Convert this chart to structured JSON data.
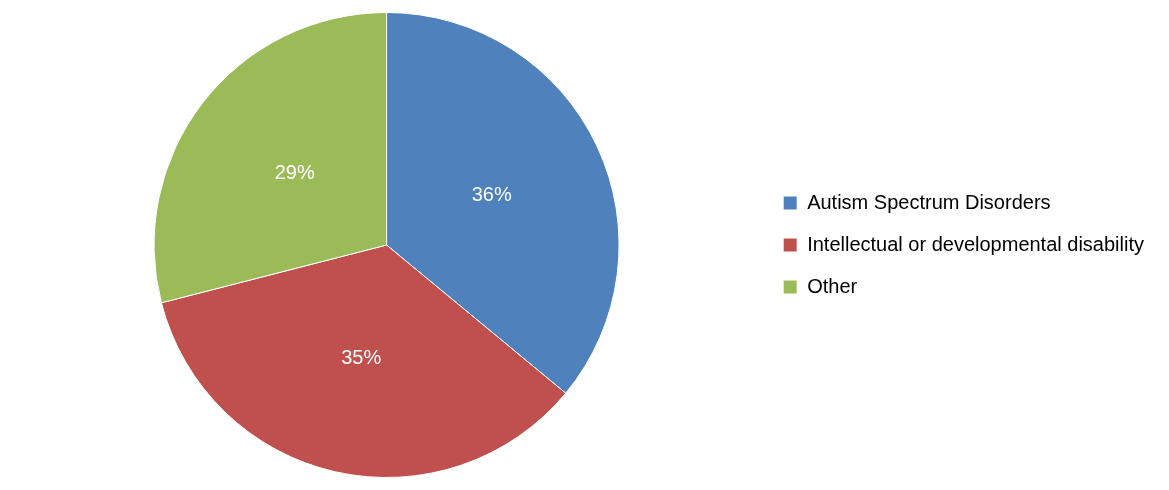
{
  "chart_data": {
    "type": "pie",
    "categories": [
      "Autism Spectrum Disorders",
      "Intellectual or developmental disability",
      "Other"
    ],
    "values": [
      36,
      35,
      29
    ],
    "colors": [
      "#4f81bd",
      "#c0504d",
      "#9bbb59"
    ],
    "value_labels": [
      "36%",
      "35%",
      "29%"
    ],
    "legend": "right"
  }
}
